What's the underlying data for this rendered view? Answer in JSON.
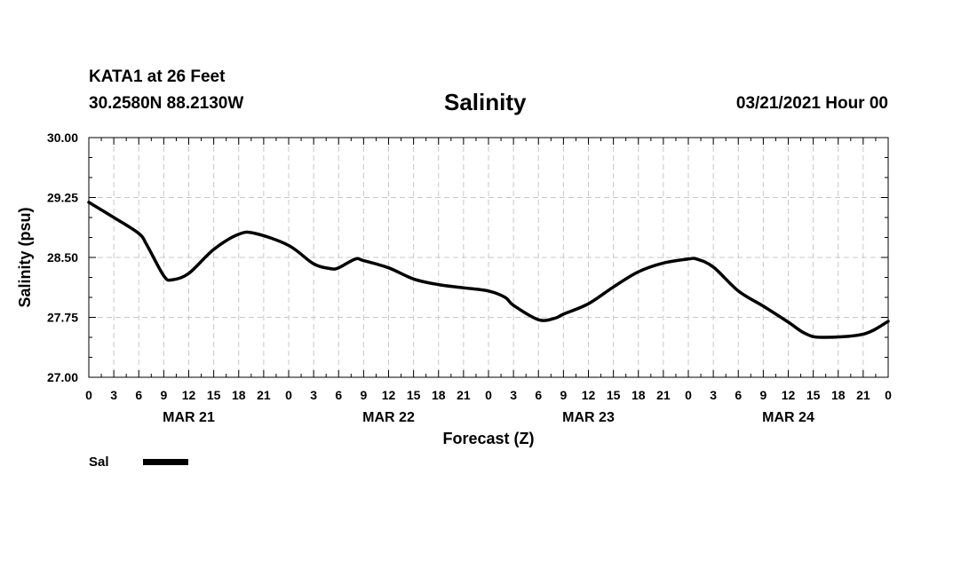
{
  "header": {
    "station": "KATA1 at 26 Feet",
    "coords": "30.2580N 88.2130W",
    "timestamp": "03/21/2021 Hour 00"
  },
  "legend": {
    "label": "Sal",
    "color": "#000000"
  },
  "chart_data": {
    "type": "line",
    "title": "Salinity",
    "xlabel": "Forecast (Z)",
    "ylabel": "Salinity (psu)",
    "ylim": [
      27.0,
      30.0
    ],
    "y_ticks": [
      "27.00",
      "27.75",
      "28.50",
      "29.25",
      "30.00"
    ],
    "xlim_hours": [
      0,
      96
    ],
    "x_tick_labels": [
      "0",
      "3",
      "6",
      "9",
      "12",
      "15",
      "18",
      "21",
      "0",
      "3",
      "6",
      "9",
      "12",
      "15",
      "18",
      "21",
      "0",
      "3",
      "6",
      "9",
      "12",
      "15",
      "18",
      "21",
      "0",
      "3",
      "6",
      "9",
      "12",
      "15",
      "18",
      "21",
      "0"
    ],
    "day_labels": [
      {
        "label": "MAR 21",
        "hour": 12
      },
      {
        "label": "MAR 22",
        "hour": 36
      },
      {
        "label": "MAR 23",
        "hour": 60
      },
      {
        "label": "MAR 24",
        "hour": 84
      }
    ],
    "grid": true,
    "series": [
      {
        "name": "Sal",
        "hours": [
          0,
          3,
          6,
          7,
          9,
          10,
          12,
          15,
          18,
          20,
          24,
          27,
          29,
          30,
          32,
          33,
          36,
          39,
          42,
          45,
          48,
          50,
          51,
          54,
          56,
          57,
          60,
          63,
          66,
          69,
          72,
          73,
          75,
          78,
          81,
          84,
          86,
          88,
          93,
          96
        ],
        "values": [
          29.19,
          29.0,
          28.8,
          28.65,
          28.27,
          28.22,
          28.3,
          28.6,
          28.79,
          28.8,
          28.65,
          28.42,
          28.36,
          28.37,
          28.48,
          28.46,
          28.37,
          28.23,
          28.16,
          28.12,
          28.08,
          28.0,
          27.9,
          27.72,
          27.74,
          27.79,
          27.92,
          28.13,
          28.32,
          28.43,
          28.48,
          28.48,
          28.38,
          28.08,
          27.89,
          27.69,
          27.55,
          27.5,
          27.54,
          27.7
        ]
      }
    ]
  }
}
